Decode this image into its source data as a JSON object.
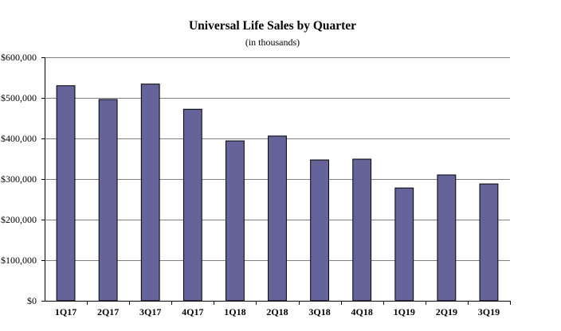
{
  "chart_data": {
    "type": "bar",
    "title": "Universal Life Sales by Quarter",
    "subtitle": "(in thousands)",
    "xlabel": "",
    "ylabel": "",
    "categories": [
      "1Q17",
      "2Q17",
      "3Q17",
      "4Q17",
      "1Q18",
      "2Q18",
      "3Q18",
      "4Q18",
      "1Q19",
      "2Q19",
      "3Q19"
    ],
    "values": [
      530000,
      496000,
      534000,
      472000,
      394000,
      406000,
      347000,
      349000,
      278000,
      310000,
      288000
    ],
    "ylim": [
      0,
      600000
    ],
    "yticks": [
      0,
      100000,
      200000,
      300000,
      400000,
      500000,
      600000
    ],
    "ytick_labels": [
      "$0",
      "$100,000",
      "$200,000",
      "$300,000",
      "$400,000",
      "$500,000",
      "$600,000"
    ],
    "grid": true,
    "legend": "none",
    "bar_color": "#64649a",
    "bar_edge_color": "#000000",
    "grid_color": "#808080"
  }
}
